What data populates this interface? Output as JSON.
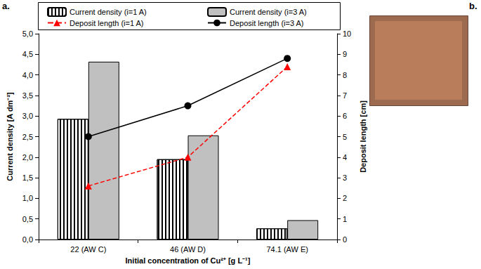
{
  "chart_data": {
    "type": "bar",
    "annotations": [
      "a.",
      "b."
    ],
    "xlabel": "Initial concentration of Cu²⁺ [g L⁻¹]",
    "ylabel": "Current density [A dm⁻²]",
    "y2label": "Deposit length [cm]",
    "categories": [
      "22 (AW C)",
      "46 (AW D)",
      "74.1 (AW E)"
    ],
    "series": [
      {
        "name": "Current density (i=1 A)",
        "type": "bar",
        "color": "#ffffff",
        "values": [
          2.93,
          1.95,
          0.27
        ]
      },
      {
        "name": "Current density (i=3 A)",
        "type": "bar",
        "color": "#c0c0c0",
        "values": [
          4.32,
          2.53,
          0.47
        ]
      },
      {
        "name": "Deposit length (i=1 A)",
        "type": "line",
        "axis": "y2",
        "color": "#ff0000",
        "marker": "triangle",
        "line_style": "dashed",
        "values": [
          2.6,
          4.0,
          8.4
        ]
      },
      {
        "name": "Deposit length (i=3 A)",
        "type": "line",
        "axis": "y2",
        "color": "#000000",
        "marker": "circle",
        "line_style": "solid",
        "values": [
          5.0,
          6.5,
          8.8
        ]
      }
    ],
    "ylim": [
      0,
      5
    ],
    "yticks": [
      {
        "value": 0,
        "label": "0,0"
      },
      {
        "value": 0.5,
        "label": "0,5"
      },
      {
        "value": 1,
        "label": "1,0"
      },
      {
        "value": 1.5,
        "label": "1,5"
      },
      {
        "value": 2,
        "label": "2,0"
      },
      {
        "value": 2.5,
        "label": "2,5"
      },
      {
        "value": 3,
        "label": "3,0"
      },
      {
        "value": 3.5,
        "label": "3,5"
      },
      {
        "value": 4,
        "label": "4,0"
      },
      {
        "value": 4.5,
        "label": "4,5"
      },
      {
        "value": 5,
        "label": "5,0"
      }
    ],
    "y2lim": [
      0,
      10
    ],
    "y2ticks": [
      0,
      1,
      2,
      3,
      4,
      5,
      6,
      7,
      8,
      9,
      10
    ],
    "grid": false,
    "legend": "top"
  }
}
